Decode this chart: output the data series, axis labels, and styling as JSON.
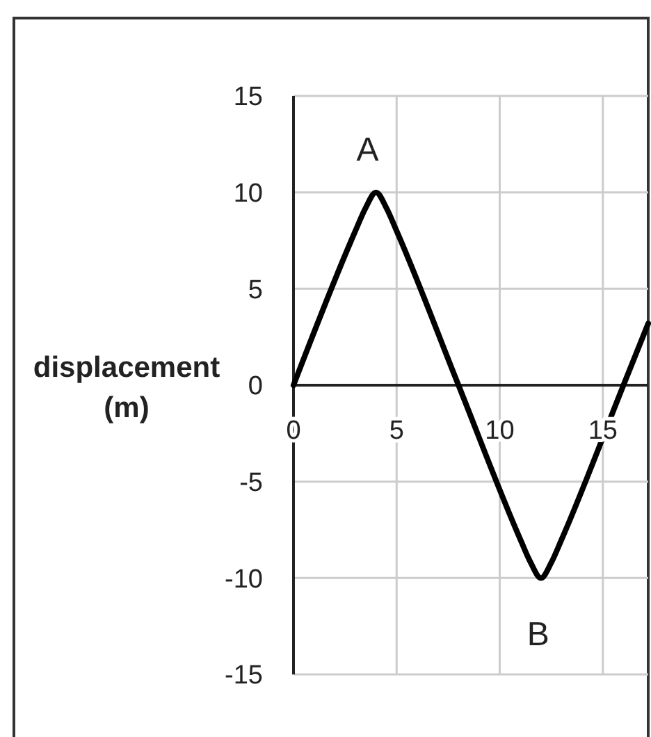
{
  "chart_data": {
    "type": "line",
    "ylabel": "displacement (m)",
    "x": [
      0,
      3,
      3.5,
      4,
      4.5,
      5,
      8,
      11,
      11.5,
      12,
      12.5,
      13,
      16,
      17.2
    ],
    "values": [
      0,
      8,
      9.2,
      10,
      9.2,
      8,
      0,
      -8,
      -9.2,
      -10,
      -9.2,
      -8,
      0,
      3.2
    ],
    "color": "#000000",
    "xlim": [
      0,
      17.2
    ],
    "ylim": [
      -15,
      15
    ],
    "xticks": [
      0,
      5,
      10,
      15
    ],
    "yticks": [
      -15,
      -10,
      -5,
      0,
      5,
      10,
      15
    ],
    "grid": true,
    "line_style": "solid",
    "marker": "none",
    "annotations": [
      {
        "text": "A",
        "x": 4,
        "y": 10
      },
      {
        "text": "B",
        "x": 12,
        "y": -10
      }
    ]
  }
}
